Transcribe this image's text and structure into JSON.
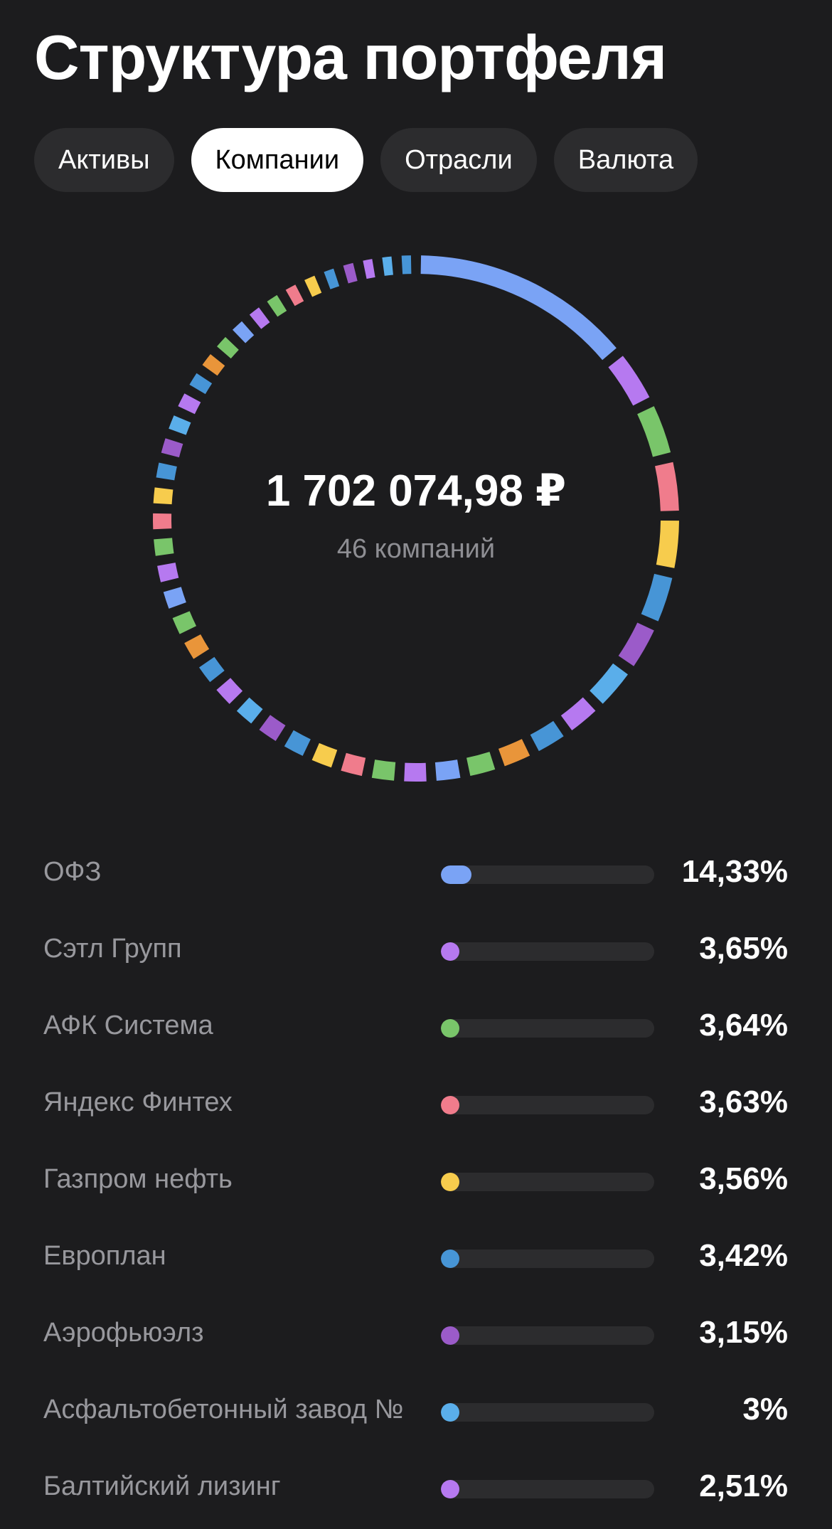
{
  "header": {
    "title": "Структура портфеля"
  },
  "tabs": [
    {
      "label": "Активы",
      "active": false
    },
    {
      "label": "Компании",
      "active": true
    },
    {
      "label": "Отрасли",
      "active": false
    },
    {
      "label": "Валюта",
      "active": false
    }
  ],
  "summary": {
    "total": "1 702 074,98 ₽",
    "count": "46 компаний"
  },
  "colors": {
    "blue": "#7aa3f5",
    "purple": "#b679f0",
    "green": "#79c56a",
    "pink": "#f07c8c",
    "yellow": "#f7cc4d",
    "deep_blue": "#4795d6",
    "violet": "#9b5bc9",
    "sky": "#5aaeea",
    "orange": "#e9953a",
    "track": "#2c2c2e"
  },
  "chart_data": {
    "type": "donut",
    "segments": [
      {
        "name": "ОФЗ",
        "value": 14.33,
        "color": "#7aa3f5"
      },
      {
        "name": "Сэтл Групп",
        "value": 3.65,
        "color": "#b679f0"
      },
      {
        "name": "АФК Система",
        "value": 3.64,
        "color": "#79c56a"
      },
      {
        "name": "Яндекс Финтех",
        "value": 3.63,
        "color": "#f07c8c"
      },
      {
        "name": "Газпром нефть",
        "value": 3.56,
        "color": "#f7cc4d"
      },
      {
        "name": "Европлан",
        "value": 3.42,
        "color": "#4795d6"
      },
      {
        "name": "Аэрофьюэлз",
        "value": 3.15,
        "color": "#9b5bc9"
      },
      {
        "name": "Асфальтобетонный завод №",
        "value": 3.0,
        "color": "#5aaeea"
      },
      {
        "name": "Балтийский лизинг",
        "value": 2.51,
        "color": "#b679f0"
      },
      {
        "value": 2.4,
        "color": "#4795d6"
      },
      {
        "value": 2.3,
        "color": "#e9953a"
      },
      {
        "value": 2.2,
        "color": "#79c56a"
      },
      {
        "value": 2.1,
        "color": "#7aa3f5"
      },
      {
        "value": 2.0,
        "color": "#b679f0"
      },
      {
        "value": 2.0,
        "color": "#79c56a"
      },
      {
        "value": 1.95,
        "color": "#f07c8c"
      },
      {
        "value": 1.9,
        "color": "#f7cc4d"
      },
      {
        "value": 1.9,
        "color": "#4795d6"
      },
      {
        "value": 1.85,
        "color": "#9b5bc9"
      },
      {
        "value": 1.8,
        "color": "#5aaeea"
      },
      {
        "value": 1.8,
        "color": "#b679f0"
      },
      {
        "value": 1.75,
        "color": "#4795d6"
      },
      {
        "value": 1.75,
        "color": "#e9953a"
      },
      {
        "value": 1.7,
        "color": "#79c56a"
      },
      {
        "value": 1.7,
        "color": "#7aa3f5"
      },
      {
        "value": 1.65,
        "color": "#b679f0"
      },
      {
        "value": 1.65,
        "color": "#79c56a"
      },
      {
        "value": 1.6,
        "color": "#f07c8c"
      },
      {
        "value": 1.6,
        "color": "#f7cc4d"
      },
      {
        "value": 1.55,
        "color": "#4795d6"
      },
      {
        "value": 1.55,
        "color": "#9b5bc9"
      },
      {
        "value": 1.5,
        "color": "#5aaeea"
      },
      {
        "value": 1.5,
        "color": "#b679f0"
      },
      {
        "value": 1.45,
        "color": "#4795d6"
      },
      {
        "value": 1.45,
        "color": "#e9953a"
      },
      {
        "value": 1.4,
        "color": "#79c56a"
      },
      {
        "value": 1.4,
        "color": "#7aa3f5"
      },
      {
        "value": 1.35,
        "color": "#b679f0"
      },
      {
        "value": 1.35,
        "color": "#79c56a"
      },
      {
        "value": 1.3,
        "color": "#f07c8c"
      },
      {
        "value": 1.3,
        "color": "#f7cc4d"
      },
      {
        "value": 1.25,
        "color": "#4795d6"
      },
      {
        "value": 1.25,
        "color": "#9b5bc9"
      },
      {
        "value": 1.2,
        "color": "#b679f0"
      },
      {
        "value": 1.2,
        "color": "#5aaeea"
      },
      {
        "value": 1.2,
        "color": "#4795d6"
      }
    ]
  },
  "list": [
    {
      "name": "ОФЗ",
      "percent_label": "14,33%",
      "fraction": 0.1433,
      "color": "#7aa3f5"
    },
    {
      "name": "Сэтл Групп",
      "percent_label": "3,65%",
      "fraction": 0.0365,
      "color": "#b679f0"
    },
    {
      "name": "АФК Система",
      "percent_label": "3,64%",
      "fraction": 0.0364,
      "color": "#79c56a"
    },
    {
      "name": "Яндекс Финтех",
      "percent_label": "3,63%",
      "fraction": 0.0363,
      "color": "#f07c8c"
    },
    {
      "name": "Газпром нефть",
      "percent_label": "3,56%",
      "fraction": 0.0356,
      "color": "#f7cc4d"
    },
    {
      "name": "Европлан",
      "percent_label": "3,42%",
      "fraction": 0.0342,
      "color": "#4795d6"
    },
    {
      "name": "Аэрофьюэлз",
      "percent_label": "3,15%",
      "fraction": 0.0315,
      "color": "#9b5bc9"
    },
    {
      "name": "Асфальтобетонный завод №",
      "percent_label": "3%",
      "fraction": 0.03,
      "color": "#5aaeea"
    },
    {
      "name": "Балтийский лизинг",
      "percent_label": "2,51%",
      "fraction": 0.0251,
      "color": "#b679f0"
    }
  ]
}
